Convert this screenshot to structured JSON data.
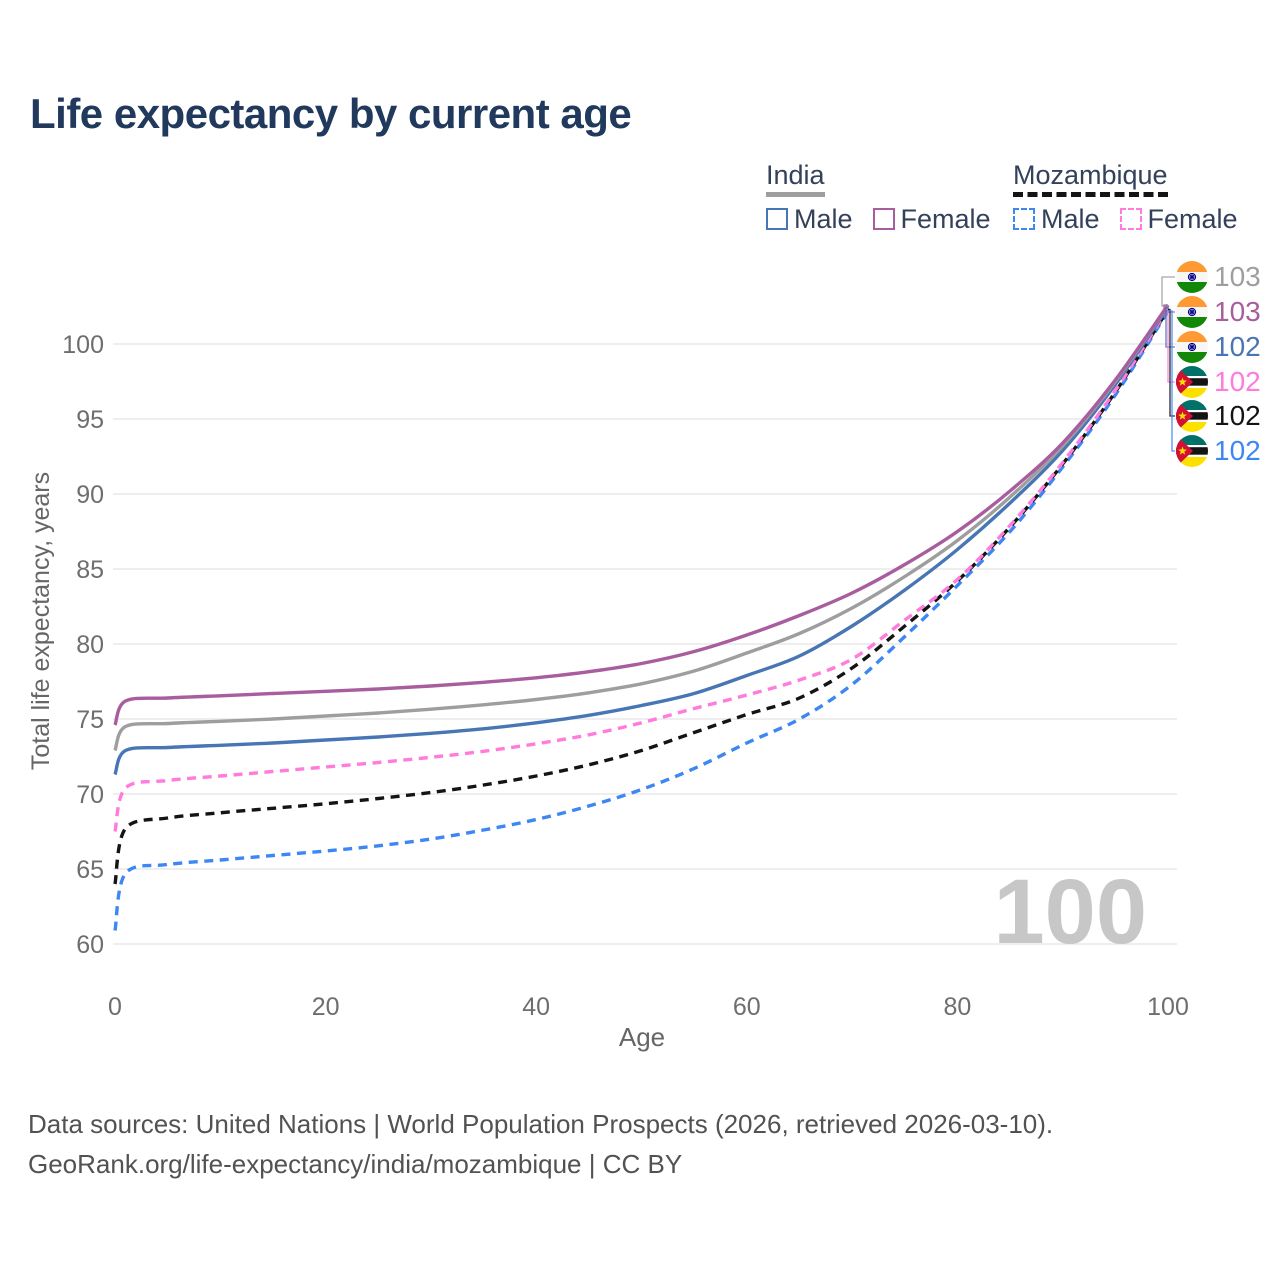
{
  "title": "Life expectancy by current age",
  "watermark_age": "100",
  "axes": {
    "x_label": "Age",
    "y_label": "Total life expectancy, years"
  },
  "legend": {
    "groups": [
      {
        "label": "India",
        "underline_style": "solid",
        "underline_color": "#9e9e9e",
        "items": [
          {
            "label": "Male",
            "color": "#4876b4",
            "dashed": false
          },
          {
            "label": "Female",
            "color": "#a85d9e",
            "dashed": false
          }
        ]
      },
      {
        "label": "Mozambique",
        "underline_style": "dashed",
        "underline_color": "#141414",
        "items": [
          {
            "label": "Male",
            "color": "#3d87f5",
            "dashed": true
          },
          {
            "label": "Female",
            "color": "#ff7bdc",
            "dashed": true
          }
        ]
      }
    ]
  },
  "rank_labels": [
    {
      "flag": "india",
      "value": "103",
      "color": "#9e9e9e"
    },
    {
      "flag": "india",
      "value": "103",
      "color": "#a85d9e"
    },
    {
      "flag": "india",
      "value": "102",
      "color": "#4876b4"
    },
    {
      "flag": "mozambique",
      "value": "102",
      "color": "#ff7bdc"
    },
    {
      "flag": "mozambique",
      "value": "102",
      "color": "#141414"
    },
    {
      "flag": "mozambique",
      "value": "102",
      "color": "#3d87f5"
    }
  ],
  "chart_data": {
    "type": "line",
    "title": "Life expectancy by current age",
    "xlabel": "Age",
    "ylabel": "Total life expectancy, years",
    "xlim": [
      0,
      100
    ],
    "ylim": [
      60,
      103
    ],
    "x_ticks": [
      0,
      20,
      40,
      60,
      80,
      100
    ],
    "y_ticks": [
      60,
      65,
      70,
      75,
      80,
      85,
      90,
      95,
      100
    ],
    "grid": "horizontal",
    "legend_position": "top-right",
    "x": [
      0,
      1,
      5,
      10,
      15,
      20,
      25,
      30,
      35,
      40,
      45,
      50,
      55,
      60,
      65,
      70,
      75,
      80,
      85,
      90,
      95,
      100
    ],
    "series": [
      {
        "name": "India Female",
        "country": "India",
        "sex": "Female",
        "color": "#a85d9e",
        "dash": false,
        "end_label": "103",
        "values": [
          74.6,
          76.2,
          76.4,
          76.55,
          76.7,
          76.85,
          77.0,
          77.2,
          77.45,
          77.75,
          78.15,
          78.7,
          79.5,
          80.6,
          81.9,
          83.4,
          85.3,
          87.5,
          90.2,
          93.4,
          97.6,
          102.6
        ]
      },
      {
        "name": "India Both sexes",
        "country": "India",
        "sex": "Both",
        "color": "#9e9e9e",
        "dash": false,
        "end_label": "103",
        "values": [
          72.9,
          74.5,
          74.7,
          74.85,
          75.0,
          75.2,
          75.4,
          75.65,
          75.95,
          76.3,
          76.75,
          77.35,
          78.2,
          79.4,
          80.7,
          82.4,
          84.5,
          86.9,
          89.8,
          93.2,
          97.5,
          102.55
        ]
      },
      {
        "name": "India Male",
        "country": "India",
        "sex": "Male",
        "color": "#4876b4",
        "dash": false,
        "end_label": "102",
        "values": [
          71.3,
          72.9,
          73.1,
          73.25,
          73.4,
          73.6,
          73.8,
          74.05,
          74.35,
          74.75,
          75.25,
          75.9,
          76.7,
          77.9,
          79.2,
          81.2,
          83.6,
          86.3,
          89.4,
          92.9,
          97.3,
          102.45
        ]
      },
      {
        "name": "Mozambique Female",
        "country": "Mozambique",
        "sex": "Female",
        "color": "#ff7bdc",
        "dash": true,
        "end_label": "102",
        "values": [
          67.5,
          70.4,
          70.9,
          71.2,
          71.5,
          71.8,
          72.1,
          72.45,
          72.85,
          73.35,
          73.95,
          74.75,
          75.7,
          76.6,
          77.6,
          79.0,
          81.6,
          84.3,
          87.9,
          92.1,
          96.9,
          102.35
        ]
      },
      {
        "name": "Mozambique Both sexes",
        "country": "Mozambique",
        "sex": "Both",
        "color": "#141414",
        "dash": true,
        "end_label": "102",
        "values": [
          64.0,
          67.7,
          68.4,
          68.75,
          69.05,
          69.35,
          69.7,
          70.1,
          70.6,
          71.2,
          71.95,
          72.9,
          74.1,
          75.3,
          76.4,
          78.4,
          81.2,
          84.2,
          87.8,
          92.0,
          96.8,
          102.3
        ]
      },
      {
        "name": "Mozambique Male",
        "country": "Mozambique",
        "sex": "Male",
        "color": "#3d87f5",
        "dash": true,
        "end_label": "102",
        "values": [
          60.9,
          64.7,
          65.3,
          65.6,
          65.9,
          66.2,
          66.55,
          67.0,
          67.6,
          68.3,
          69.2,
          70.3,
          71.7,
          73.4,
          75.0,
          77.3,
          80.5,
          83.9,
          87.5,
          91.8,
          96.6,
          102.2
        ]
      }
    ]
  },
  "footer": {
    "line1": "Data sources: United Nations | World Population Prospects (2026, retrieved 2026-03-10).",
    "line2": "GeoRank.org/life-expectancy/india/mozambique | CC BY"
  }
}
